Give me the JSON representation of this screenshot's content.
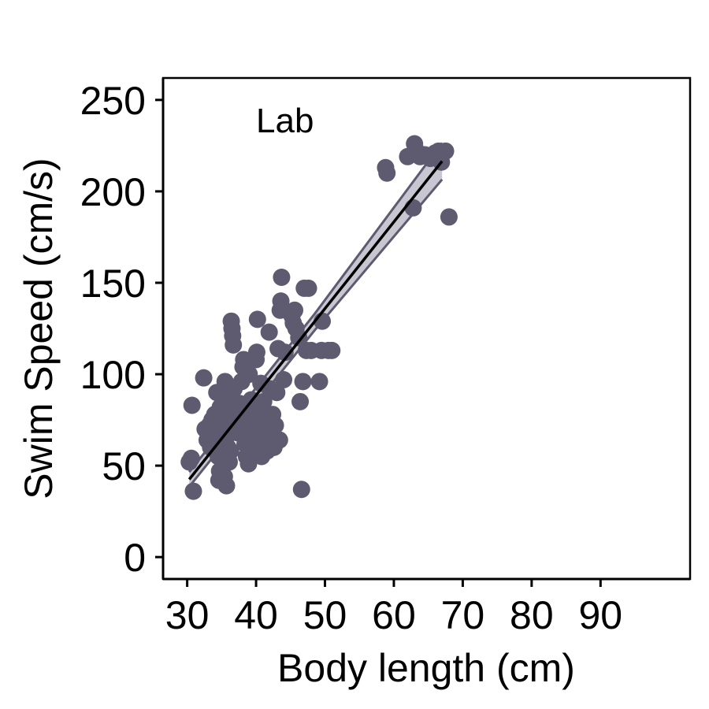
{
  "chart_data": {
    "type": "scatter",
    "panel_label": "Lab",
    "xlabel": "Body length (cm)",
    "ylabel": "Swim Speed (cm/s)",
    "xlim": [
      26.5,
      103
    ],
    "ylim": [
      -12,
      262
    ],
    "xticks": [
      30,
      40,
      50,
      60,
      70,
      80,
      90
    ],
    "yticks": [
      0,
      50,
      100,
      150,
      200,
      250
    ],
    "grid": false,
    "legend": "none",
    "colors": {
      "points": "#5e5a70",
      "band": "#c8c6d0",
      "band_edge": "#5e5a70",
      "fit": "#000000"
    },
    "points": [
      [
        30.3,
        52
      ],
      [
        30.6,
        54
      ],
      [
        30.7,
        83
      ],
      [
        30.9,
        36
      ],
      [
        32.4,
        98
      ],
      [
        32.6,
        70
      ],
      [
        32.9,
        64
      ],
      [
        33.2,
        72
      ],
      [
        33.4,
        60
      ],
      [
        33.6,
        75
      ],
      [
        34.0,
        78
      ],
      [
        34.2,
        68
      ],
      [
        34.3,
        90
      ],
      [
        34.5,
        55
      ],
      [
        34.6,
        42
      ],
      [
        34.7,
        47
      ],
      [
        34.8,
        82
      ],
      [
        34.9,
        62
      ],
      [
        35.0,
        88
      ],
      [
        35.1,
        72
      ],
      [
        35.2,
        50
      ],
      [
        35.3,
        56
      ],
      [
        35.4,
        44
      ],
      [
        35.5,
        96
      ],
      [
        35.6,
        65
      ],
      [
        35.7,
        39
      ],
      [
        35.8,
        78
      ],
      [
        35.9,
        60
      ],
      [
        36.0,
        85
      ],
      [
        36.1,
        52
      ],
      [
        36.2,
        70
      ],
      [
        36.3,
        75
      ],
      [
        36.4,
        129
      ],
      [
        36.5,
        125
      ],
      [
        36.6,
        121
      ],
      [
        36.7,
        116
      ],
      [
        36.3,
        58
      ],
      [
        36.8,
        92
      ],
      [
        37.0,
        80
      ],
      [
        37.3,
        68
      ],
      [
        37.6,
        84
      ],
      [
        37.9,
        96
      ],
      [
        38.1,
        104
      ],
      [
        38.2,
        108
      ],
      [
        38.4,
        62
      ],
      [
        38.5,
        73
      ],
      [
        38.6,
        55
      ],
      [
        38.8,
        66
      ],
      [
        38.9,
        51
      ],
      [
        39.0,
        100
      ],
      [
        39.1,
        78
      ],
      [
        39.3,
        86
      ],
      [
        39.5,
        70
      ],
      [
        39.7,
        58
      ],
      [
        39.9,
        63
      ],
      [
        40.0,
        108
      ],
      [
        40.1,
        112
      ],
      [
        40.2,
        130
      ],
      [
        40.3,
        82
      ],
      [
        40.4,
        72
      ],
      [
        40.6,
        60
      ],
      [
        40.7,
        95
      ],
      [
        40.8,
        55
      ],
      [
        41.0,
        65
      ],
      [
        41.1,
        85
      ],
      [
        41.3,
        75
      ],
      [
        41.5,
        70
      ],
      [
        41.6,
        58
      ],
      [
        41.8,
        62
      ],
      [
        41.9,
        123
      ],
      [
        42.0,
        92
      ],
      [
        42.2,
        68
      ],
      [
        42.4,
        78
      ],
      [
        42.6,
        60
      ],
      [
        42.8,
        72
      ],
      [
        43.0,
        90
      ],
      [
        43.2,
        114
      ],
      [
        43.4,
        64
      ],
      [
        43.5,
        135
      ],
      [
        43.6,
        140
      ],
      [
        43.7,
        153
      ],
      [
        44.0,
        97
      ],
      [
        44.2,
        112
      ],
      [
        45.2,
        132
      ],
      [
        45.4,
        128
      ],
      [
        45.6,
        135
      ],
      [
        45.8,
        125
      ],
      [
        46.2,
        120
      ],
      [
        46.4,
        85
      ],
      [
        46.6,
        37
      ],
      [
        46.8,
        96
      ],
      [
        47.0,
        147
      ],
      [
        47.3,
        113
      ],
      [
        47.6,
        147
      ],
      [
        48.0,
        113
      ],
      [
        49.2,
        96
      ],
      [
        49.5,
        113
      ],
      [
        49.6,
        129
      ],
      [
        50.5,
        113
      ],
      [
        51.0,
        113
      ],
      [
        58.8,
        213
      ],
      [
        59.0,
        210
      ],
      [
        62.0,
        219
      ],
      [
        62.8,
        191
      ],
      [
        63.0,
        226
      ],
      [
        63.3,
        222
      ],
      [
        63.8,
        219
      ],
      [
        64.5,
        220
      ],
      [
        65.3,
        218
      ],
      [
        66.0,
        221
      ],
      [
        66.5,
        222
      ],
      [
        66.9,
        216
      ],
      [
        67.5,
        222
      ],
      [
        68.0,
        186
      ]
    ],
    "fit": {
      "x": [
        30.3,
        67.0
      ],
      "y": [
        42.5,
        216.5
      ]
    },
    "confidence_band": {
      "x": [
        30.3,
        48.5,
        67.0
      ],
      "lower": [
        38.5,
        124.0,
        206.5
      ],
      "upper": [
        46.5,
        133.0,
        226.5
      ]
    }
  }
}
